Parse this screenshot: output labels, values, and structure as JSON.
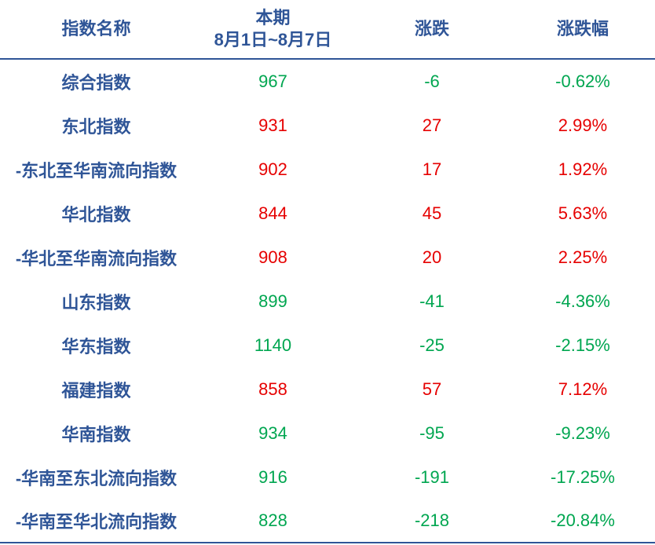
{
  "header": {
    "name": "指数名称",
    "period_label": "本期",
    "period": "8月1日~8月7日",
    "change": "涨跌",
    "change_pct": "涨跌幅"
  },
  "table": {
    "rows": [
      [
        "综合指数",
        "967",
        "-6",
        "-0.62%"
      ],
      [
        "东北指数",
        "931",
        "27",
        "2.99%"
      ],
      [
        "-东北至华南流向指数",
        "902",
        "17",
        "1.92%"
      ],
      [
        "华北指数",
        "844",
        "45",
        "5.63%"
      ],
      [
        "-华北至华南流向指数",
        "908",
        "20",
        "2.25%"
      ],
      [
        "山东指数",
        "899",
        "-41",
        "-4.36%"
      ],
      [
        "华东指数",
        "1140",
        "-25",
        "-2.15%"
      ],
      [
        "福建指数",
        "858",
        "57",
        "7.12%"
      ],
      [
        "华南指数",
        "934",
        "-95",
        "-9.23%"
      ],
      [
        "-华南至东北流向指数",
        "916",
        "-191",
        "-17.25%"
      ],
      [
        "-华南至华北流向指数",
        "828",
        "-218",
        "-20.84%"
      ]
    ]
  }
}
